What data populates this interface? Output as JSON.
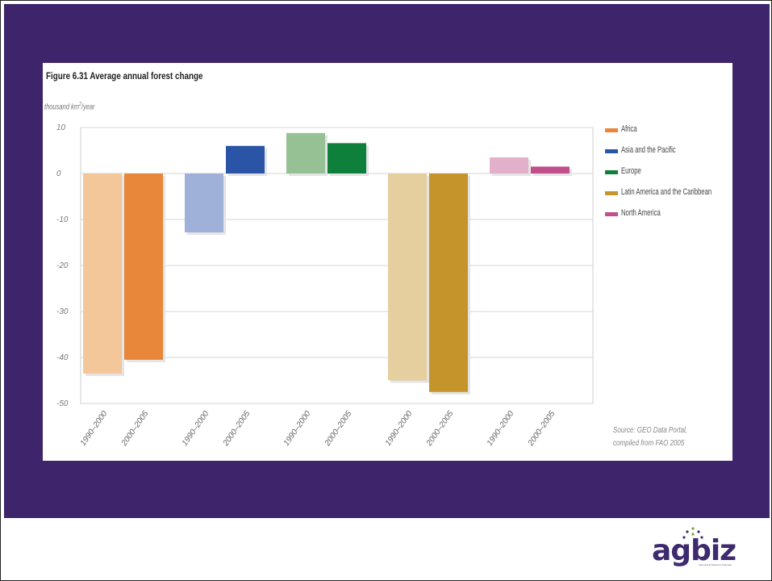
{
  "chart_data": {
    "type": "bar",
    "title": "Figure 6.31 Average annual forest change",
    "ylabel_prefix": "thousand km",
    "ylabel_sup": "2",
    "ylabel_suffix": "/year",
    "ylim": [
      -50,
      10
    ],
    "yticks": [
      10,
      0,
      -10,
      -20,
      -30,
      -40,
      -50
    ],
    "grid": true,
    "legend_position": "right",
    "period_labels": [
      "1990–2000",
      "2000–2005"
    ],
    "series": [
      {
        "name": "Africa",
        "color": "#e8873a",
        "light_color": "#f3c79a",
        "values": [
          -43.5,
          -40.5
        ]
      },
      {
        "name": "Asia and the Pacific",
        "color": "#2a55a6",
        "light_color": "#9fb0d9",
        "values": [
          -12.8,
          6.0
        ]
      },
      {
        "name": "Europe",
        "color": "#0f7f3c",
        "light_color": "#95c194",
        "values": [
          8.8,
          6.6
        ]
      },
      {
        "name": "Latin America and the Caribbean",
        "color": "#c5942a",
        "light_color": "#e5cf9f",
        "values": [
          -45.0,
          -47.5
        ]
      },
      {
        "name": "North America",
        "color": "#c0508c",
        "light_color": "#e3b0cc",
        "values": [
          3.5,
          1.5
        ]
      }
    ],
    "source_line1": "Source: GEO Data Portal,",
    "source_line2": "compiled from FAO 2005"
  },
  "logo": {
    "text": "agbiz",
    "tagline": "Agricultural Business Chamber"
  }
}
